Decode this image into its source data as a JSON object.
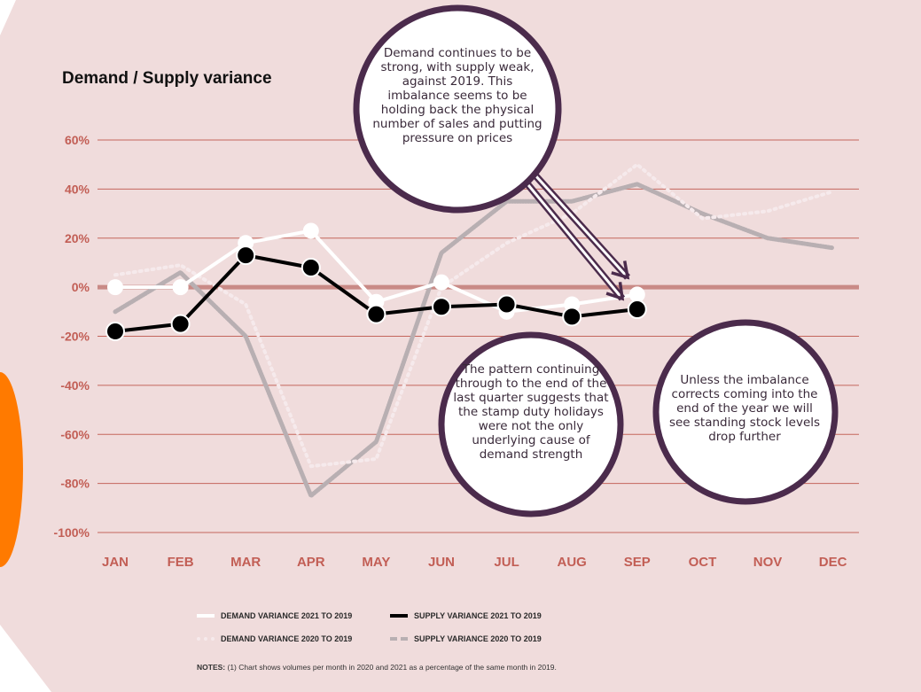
{
  "chart_data": {
    "type": "line",
    "title": "Demand / Supply variance",
    "categories": [
      "JAN",
      "FEB",
      "MAR",
      "APR",
      "MAY",
      "JUN",
      "JUL",
      "AUG",
      "SEP",
      "OCT",
      "NOV",
      "DEC"
    ],
    "y_ticks": [
      "60%",
      "40%",
      "20%",
      "0%",
      "-20%",
      "-40%",
      "-60%",
      "-80%",
      "-100%"
    ],
    "ylim": [
      -100,
      60
    ],
    "grid": true,
    "legend_position": "bottom",
    "series": [
      {
        "name": "DEMAND VARIANCE 2021 TO 2019",
        "values": [
          0,
          0,
          18,
          23,
          -6,
          2,
          -10,
          -7,
          -3,
          null,
          null,
          null
        ]
      },
      {
        "name": "SUPPLY VARIANCE 2021 TO 2019",
        "values": [
          -18,
          -15,
          13,
          8,
          -11,
          -8,
          -7,
          -12,
          -9,
          null,
          null,
          null
        ]
      },
      {
        "name": "DEMAND VARIANCE 2020 TO 2019",
        "values": [
          5,
          9,
          -7,
          -73,
          -70,
          0,
          18,
          30,
          50,
          28,
          31,
          39
        ]
      },
      {
        "name": "SUPPLY VARIANCE 2020 TO 2019",
        "values": [
          -10,
          6,
          -20,
          -85,
          -63,
          14,
          35,
          35,
          42,
          30,
          20,
          16
        ]
      }
    ],
    "annotations": [
      "Demand continues to be strong, with supply weak, against 2019. This imbalance seems to be holding back the physical number of sales and putting pressure on prices",
      "The pattern continuing through to the end of the last quarter suggests that the stamp duty holidays were not the only underlying cause of demand strength",
      "Unless the imbalance corrects coming into the end of the year we will see standing stock levels drop further"
    ],
    "notes_label": "NOTES:",
    "notes_text": "(1) Chart shows volumes per month in 2020 and 2021 as a percentage of the same month in 2019."
  },
  "colors": {
    "background": "#f0dcdc",
    "grid": "#c4665c",
    "zero_line": "#c98a86",
    "axis_text": "#c25e55",
    "bubble_border": "#4b2b4c",
    "demand_2021": "#ffffff",
    "supply_2021": "#000000",
    "demand_2020": "#f6eaec",
    "supply_2020": "#b8afb2",
    "orange": "#ff7a00"
  }
}
